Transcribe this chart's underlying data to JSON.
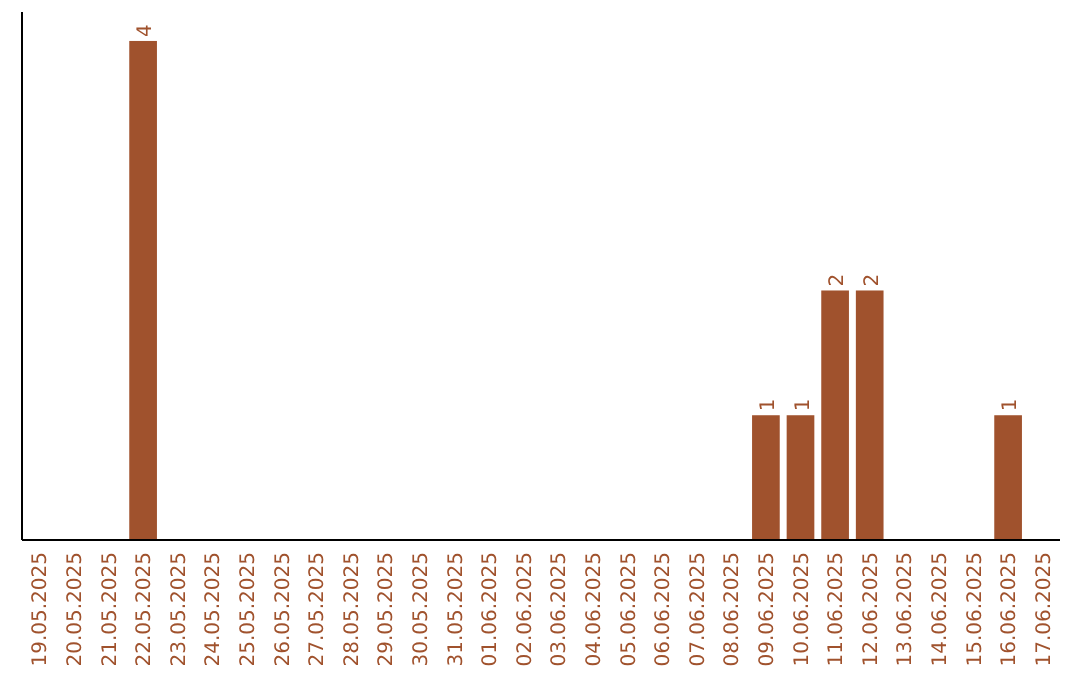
{
  "chart_data": {
    "type": "bar",
    "categories": [
      "19.05.2025",
      "20.05.2025",
      "21.05.2025",
      "22.05.2025",
      "23.05.2025",
      "24.05.2025",
      "25.05.2025",
      "26.05.2025",
      "27.05.2025",
      "28.05.2025",
      "29.05.2025",
      "30.05.2025",
      "31.05.2025",
      "01.06.2025",
      "02.06.2025",
      "03.06.2025",
      "04.06.2025",
      "05.06.2025",
      "06.06.2025",
      "07.06.2025",
      "08.06.2025",
      "09.06.2025",
      "10.06.2025",
      "11.06.2025",
      "12.06.2025",
      "13.06.2025",
      "14.06.2025",
      "15.06.2025",
      "16.06.2025",
      "17.06.2025"
    ],
    "values": [
      0,
      0,
      0,
      4,
      0,
      0,
      0,
      0,
      0,
      0,
      0,
      0,
      0,
      0,
      0,
      0,
      0,
      0,
      0,
      0,
      0,
      1,
      1,
      2,
      2,
      0,
      0,
      0,
      1,
      0
    ],
    "value_labels": [
      null,
      null,
      null,
      "4",
      null,
      null,
      null,
      null,
      null,
      null,
      null,
      null,
      null,
      null,
      null,
      null,
      null,
      null,
      null,
      null,
      null,
      "1",
      "1",
      "2",
      "2",
      null,
      null,
      null,
      "1",
      null
    ],
    "color": "#a0522d"
  }
}
